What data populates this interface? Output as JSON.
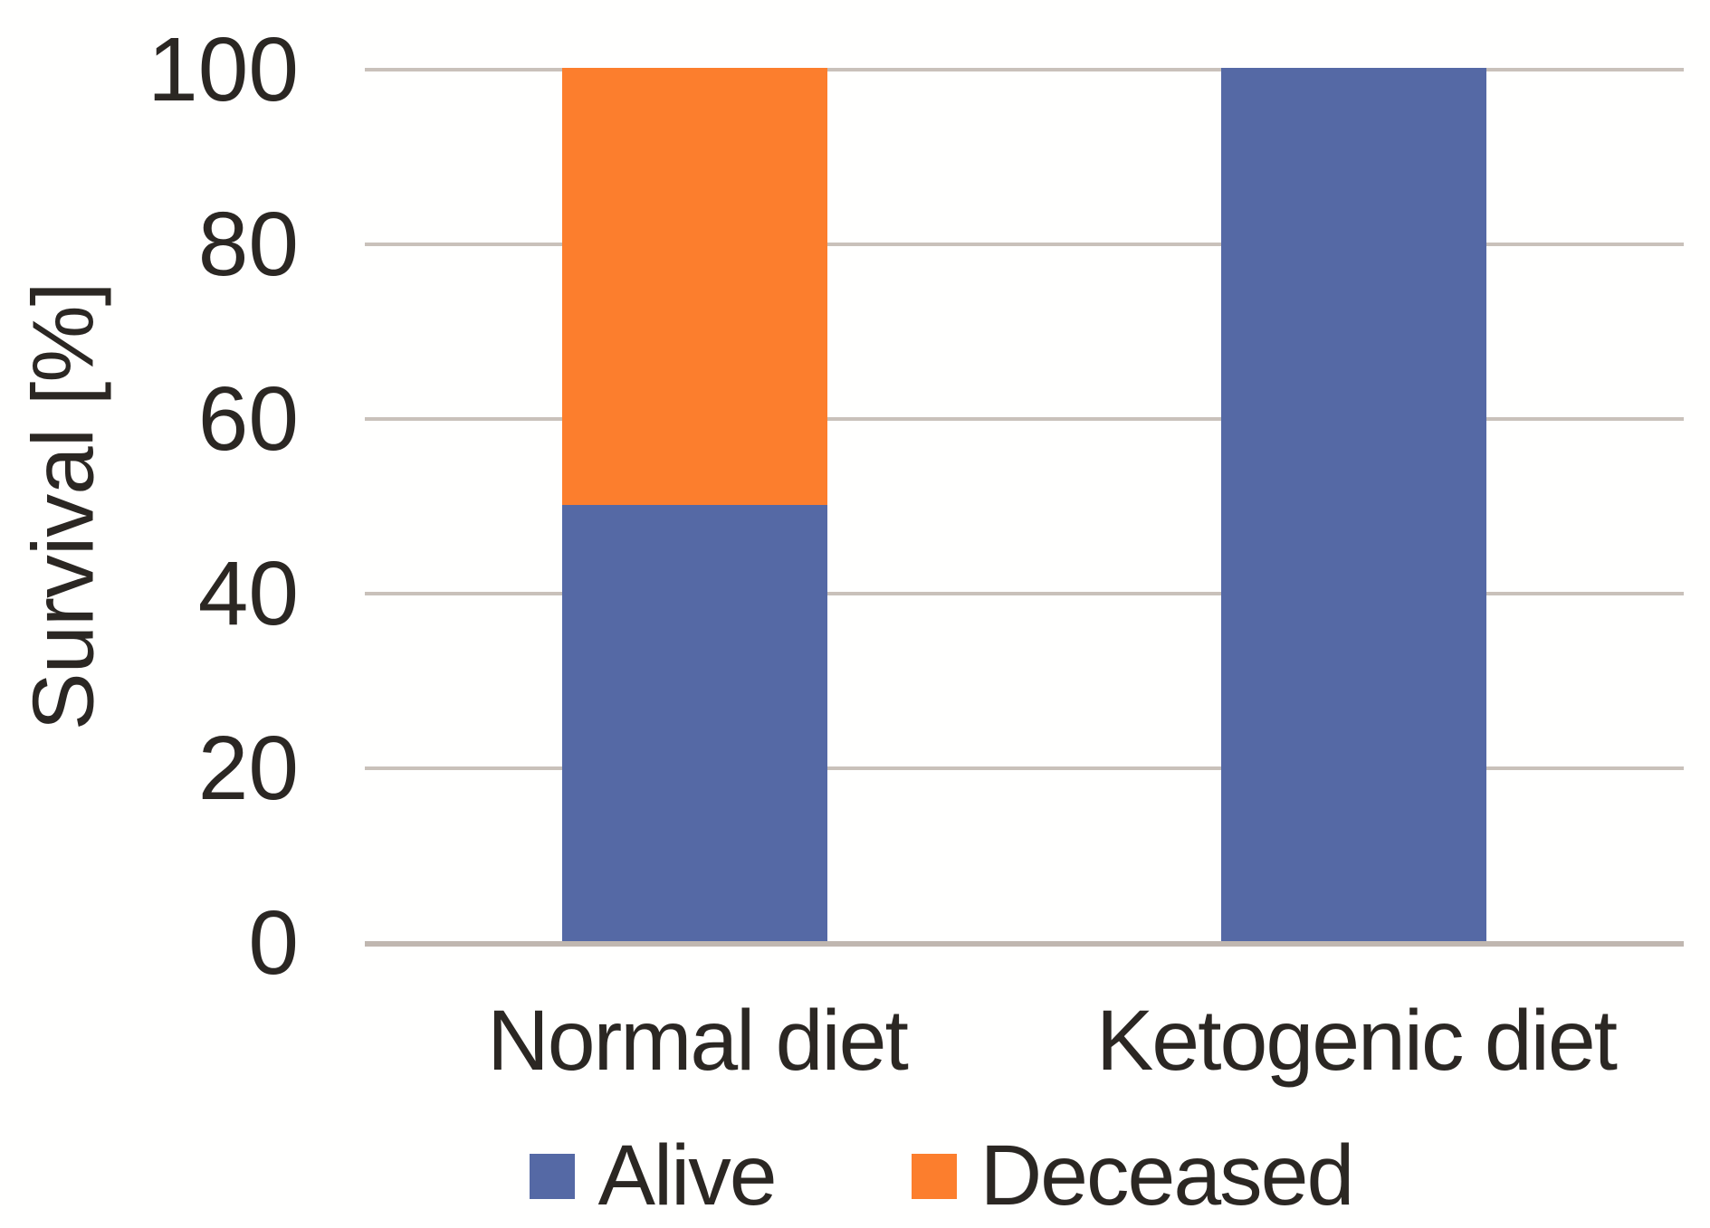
{
  "chart_data": {
    "type": "bar",
    "stacked": true,
    "categories": [
      "Normal diet",
      "Ketogenic diet"
    ],
    "series": [
      {
        "name": "Alive",
        "color": "#5569A5",
        "values": [
          50,
          100
        ]
      },
      {
        "name": "Deceased",
        "color": "#FC7E2D",
        "values": [
          50,
          0
        ]
      }
    ],
    "title": "",
    "xlabel": "",
    "ylabel": "Survival [%]",
    "ylim": [
      0,
      100
    ],
    "yticks": [
      0,
      20,
      40,
      60,
      80,
      100
    ],
    "grid": "horizontal",
    "legend_position": "bottom"
  },
  "colors": {
    "background": "#FFFFFE",
    "text": "#2B2723",
    "gridline": "#C9C1BA",
    "axis": "#C0B7B0"
  }
}
